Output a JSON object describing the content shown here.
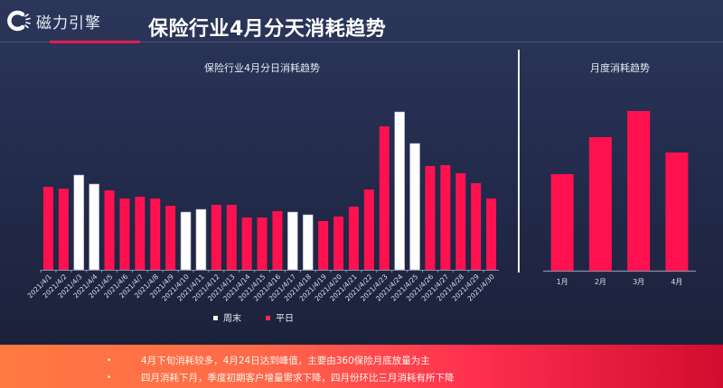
{
  "header": {
    "logo_text": "磁力引擎",
    "title": "保险行业4月分天消耗趋势"
  },
  "colors": {
    "weekday": "#ff1150",
    "weekend": "#ffffff",
    "accent": "#e8194f"
  },
  "chart_data": [
    {
      "type": "bar",
      "title": "保险行业4月分日消耗趋势",
      "categories": [
        "2021/4/1",
        "2021/4/2",
        "2021/4/3",
        "2021/4/4",
        "2021/4/5",
        "2021/4/6",
        "2021/4/7",
        "2021/4/8",
        "2021/4/9",
        "2021/4/10",
        "2021/4/11",
        "2021/4/12",
        "2021/4/13",
        "2021/4/14",
        "2021/4/15",
        "2021/4/16",
        "2021/4/17",
        "2021/4/18",
        "2021/4/19",
        "2021/4/20",
        "2021/4/21",
        "2021/4/22",
        "2021/4/23",
        "2021/4/24",
        "2021/4/25",
        "2021/4/26",
        "2021/4/27",
        "2021/4/28",
        "2021/4/29",
        "2021/4/30"
      ],
      "values": [
        92,
        90,
        105,
        95,
        88,
        79,
        81,
        79,
        71,
        64,
        67,
        72,
        72,
        58,
        58,
        65,
        64,
        61,
        54,
        59,
        70,
        89,
        159,
        175,
        140,
        115,
        116,
        107,
        96,
        79
      ],
      "day_type": [
        "平日",
        "平日",
        "周末",
        "周末",
        "平日",
        "平日",
        "平日",
        "平日",
        "平日",
        "周末",
        "周末",
        "平日",
        "平日",
        "平日",
        "平日",
        "平日",
        "周末",
        "周末",
        "平日",
        "平日",
        "平日",
        "平日",
        "平日",
        "周末",
        "周末",
        "平日",
        "平日",
        "平日",
        "平日",
        "平日"
      ],
      "legend": [
        {
          "name": "周末",
          "color": "#ffffff"
        },
        {
          "name": "平日",
          "color": "#ff1150"
        }
      ],
      "legend_position": "bottom",
      "grid": false,
      "yaxis_visible": false
    },
    {
      "type": "bar",
      "title": "月度消耗趋势",
      "categories": [
        "1月",
        "2月",
        "3月",
        "4月"
      ],
      "values": [
        107,
        148,
        177,
        131
      ],
      "grid": false,
      "yaxis_visible": false
    }
  ],
  "footer": {
    "bullets": [
      "4月下旬消耗较多，4月24日达到峰值，主要由360保险月底放量为主",
      "四月消耗下月，季度初期客户增量需求下降，四月份环比三月消耗有所下降"
    ]
  }
}
